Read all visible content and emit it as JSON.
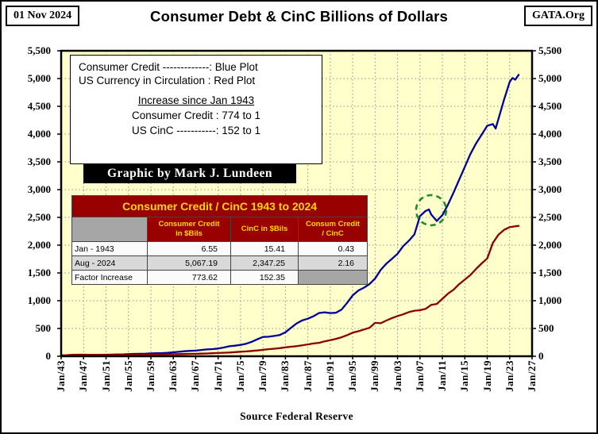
{
  "header": {
    "date_stamp": "01 Nov 2024",
    "title": "Consumer Debt & CinC Billions of Dollars",
    "site": "GATA.Org"
  },
  "legend": {
    "line1": "Consumer Credit -------------: Blue Plot",
    "line2": "US Currency in Circulation : Red Plot",
    "subtitle": "Increase since Jan 1943",
    "line3": "Consumer Credit : 774 to 1",
    "line4": "US CinC -----------: 152 to 1"
  },
  "credit_banner": "Graphic by Mark J. Lundeen",
  "table": {
    "title": "Consumer Credit / CinC 1943 to 2024",
    "columns": [
      "",
      "Consumer Credit in $Bils",
      "CinC in $Bils",
      "Consum Credit / CinC"
    ],
    "rows": [
      {
        "label": "Jan - 1943",
        "values": [
          "6.55",
          "15.41",
          "0.43"
        ]
      },
      {
        "label": "Aug - 2024",
        "values": [
          "5,067.19",
          "2,347.25",
          "2.16"
        ]
      },
      {
        "label": "Factor Increase",
        "values": [
          "773.62",
          "152.35",
          ""
        ]
      }
    ]
  },
  "source": "Source Federal Reserve",
  "colors": {
    "blue_plot": "#00009B",
    "red_plot": "#8B0000",
    "plot_bg": "#FFFFCC",
    "grid": "#909090",
    "table_red": "#990000",
    "table_yellow": "#FFD700",
    "row_gray": "#D9D9D9",
    "cell_gray": "#A6A6A6",
    "annotation_green": "#228B22"
  },
  "chart_data": {
    "type": "line",
    "title": "Consumer Debt & CinC Billions of Dollars",
    "xlabel": "",
    "ylabel": "Billions of Dollars",
    "x_range": [
      1943,
      2027
    ],
    "y_range": [
      0,
      5500
    ],
    "y_tick_step": 500,
    "x_tick_step_years": 4,
    "grid": true,
    "x_tick_labels": [
      "Jan/43",
      "Jan/47",
      "Jan/51",
      "Jan/55",
      "Jan/59",
      "Jan/63",
      "Jan/67",
      "Jan/71",
      "Jan/75",
      "Jan/79",
      "Jan/83",
      "Jan/87",
      "Jan/91",
      "Jan/95",
      "Jan/99",
      "Jan/03",
      "Jan/07",
      "Jan/11",
      "Jan/15",
      "Jan/19",
      "Jan/23",
      "Jan/27"
    ],
    "series": [
      {
        "name": "Consumer Credit",
        "color": "#00009B",
        "points": [
          [
            1943,
            6.55
          ],
          [
            1944,
            5.7
          ],
          [
            1945,
            5.7
          ],
          [
            1946,
            8.4
          ],
          [
            1947,
            11.6
          ],
          [
            1948,
            14.4
          ],
          [
            1949,
            17.4
          ],
          [
            1950,
            21.5
          ],
          [
            1951,
            22.7
          ],
          [
            1952,
            27.5
          ],
          [
            1953,
            31.4
          ],
          [
            1954,
            32.5
          ],
          [
            1955,
            38.8
          ],
          [
            1956,
            42.5
          ],
          [
            1957,
            45.0
          ],
          [
            1958,
            45.1
          ],
          [
            1959,
            51.5
          ],
          [
            1960,
            56.1
          ],
          [
            1961,
            57.7
          ],
          [
            1962,
            63.4
          ],
          [
            1963,
            71.7
          ],
          [
            1964,
            80.3
          ],
          [
            1965,
            89.9
          ],
          [
            1966,
            97.1
          ],
          [
            1967,
            102.1
          ],
          [
            1968,
            113.1
          ],
          [
            1969,
            122.5
          ],
          [
            1970,
            128.1
          ],
          [
            1971,
            138.4
          ],
          [
            1972,
            157.6
          ],
          [
            1973,
            180.5
          ],
          [
            1974,
            190.1
          ],
          [
            1975,
            204.0
          ],
          [
            1976,
            225.7
          ],
          [
            1977,
            260.6
          ],
          [
            1978,
            305.3
          ],
          [
            1979,
            347.5
          ],
          [
            1980,
            351.9
          ],
          [
            1981,
            366.4
          ],
          [
            1982,
            383.2
          ],
          [
            1983,
            431.7
          ],
          [
            1984,
            511.3
          ],
          [
            1985,
            592.1
          ],
          [
            1986,
            646.1
          ],
          [
            1987,
            676.3
          ],
          [
            1988,
            719.3
          ],
          [
            1989,
            779.0
          ],
          [
            1990,
            789.3
          ],
          [
            1991,
            777.5
          ],
          [
            1992,
            782.9
          ],
          [
            1993,
            838.5
          ],
          [
            1994,
            960.6
          ],
          [
            1995,
            1096.0
          ],
          [
            1996,
            1182.7
          ],
          [
            1997,
            1234.4
          ],
          [
            1998,
            1300.5
          ],
          [
            1999,
            1398.0
          ],
          [
            2000,
            1556.3
          ],
          [
            2001,
            1667.2
          ],
          [
            2002,
            1753.7
          ],
          [
            2003,
            1846.1
          ],
          [
            2004,
            1982.0
          ],
          [
            2005,
            2077.1
          ],
          [
            2006,
            2194.1
          ],
          [
            2007,
            2522.2
          ],
          [
            2008,
            2615.0
          ],
          [
            2008.6,
            2643.0
          ],
          [
            2009,
            2555.0
          ],
          [
            2010,
            2435.0
          ],
          [
            2011,
            2540.0
          ],
          [
            2012,
            2730.0
          ],
          [
            2013,
            2950.0
          ],
          [
            2014,
            3180.0
          ],
          [
            2015,
            3410.0
          ],
          [
            2016,
            3640.0
          ],
          [
            2017,
            3830.0
          ],
          [
            2018,
            3990.0
          ],
          [
            2019,
            4150.0
          ],
          [
            2020,
            4180.0
          ],
          [
            2020.5,
            4100.0
          ],
          [
            2021,
            4270.0
          ],
          [
            2022,
            4620.0
          ],
          [
            2023,
            4940.0
          ],
          [
            2023.5,
            5010.0
          ],
          [
            2024,
            4980.0
          ],
          [
            2024.6,
            5067.19
          ]
        ]
      },
      {
        "name": "US Currency in Circulation",
        "color": "#8B0000",
        "points": [
          [
            1943,
            15.41
          ],
          [
            1944,
            20.5
          ],
          [
            1945,
            26.5
          ],
          [
            1946,
            28.5
          ],
          [
            1947,
            28.3
          ],
          [
            1948,
            27.8
          ],
          [
            1949,
            27.5
          ],
          [
            1950,
            27.7
          ],
          [
            1951,
            29.0
          ],
          [
            1952,
            30.4
          ],
          [
            1953,
            30.8
          ],
          [
            1954,
            30.5
          ],
          [
            1955,
            31.2
          ],
          [
            1956,
            31.8
          ],
          [
            1957,
            31.8
          ],
          [
            1958,
            32.2
          ],
          [
            1959,
            32.6
          ],
          [
            1960,
            32.9
          ],
          [
            1961,
            33.4
          ],
          [
            1962,
            34.8
          ],
          [
            1963,
            36.6
          ],
          [
            1964,
            38.4
          ],
          [
            1965,
            40.4
          ],
          [
            1966,
            42.7
          ],
          [
            1967,
            44.8
          ],
          [
            1968,
            47.7
          ],
          [
            1969,
            50.5
          ],
          [
            1970,
            54.4
          ],
          [
            1971,
            58.0
          ],
          [
            1972,
            62.4
          ],
          [
            1973,
            67.8
          ],
          [
            1974,
            73.7
          ],
          [
            1975,
            81.0
          ],
          [
            1976,
            87.4
          ],
          [
            1977,
            95.1
          ],
          [
            1978,
            104.8
          ],
          [
            1979,
            115.0
          ],
          [
            1980,
            127.1
          ],
          [
            1981,
            136.0
          ],
          [
            1982,
            146.2
          ],
          [
            1983,
            160.4
          ],
          [
            1984,
            171.4
          ],
          [
            1985,
            182.0
          ],
          [
            1986,
            197.5
          ],
          [
            1987,
            212.4
          ],
          [
            1988,
            230.2
          ],
          [
            1989,
            241.6
          ],
          [
            1990,
            268.2
          ],
          [
            1991,
            288.6
          ],
          [
            1992,
            313.4
          ],
          [
            1993,
            342.0
          ],
          [
            1994,
            379.5
          ],
          [
            1995,
            424.2
          ],
          [
            1996,
            450.6
          ],
          [
            1997,
            482.1
          ],
          [
            1998,
            512.2
          ],
          [
            1999,
            601.2
          ],
          [
            2000,
            593.7
          ],
          [
            2001,
            643.3
          ],
          [
            2002,
            687.5
          ],
          [
            2003,
            724.2
          ],
          [
            2004,
            754.9
          ],
          [
            2005,
            794.0
          ],
          [
            2006,
            820.0
          ],
          [
            2007,
            829.0
          ],
          [
            2008,
            853.2
          ],
          [
            2009,
            924.7
          ],
          [
            2010,
            942.0
          ],
          [
            2011,
            1033.8
          ],
          [
            2012,
            1127.1
          ],
          [
            2013,
            1198.5
          ],
          [
            2014,
            1299.1
          ],
          [
            2015,
            1380.6
          ],
          [
            2016,
            1463.4
          ],
          [
            2017,
            1571.1
          ],
          [
            2018,
            1671.9
          ],
          [
            2019,
            1759.8
          ],
          [
            2020,
            2040.7
          ],
          [
            2021,
            2186.5
          ],
          [
            2022,
            2276.3
          ],
          [
            2023,
            2325.0
          ],
          [
            2024,
            2340.0
          ],
          [
            2024.6,
            2347.25
          ]
        ]
      }
    ],
    "annotation_circle": {
      "year": 2009.0,
      "value": 2630,
      "r": 19,
      "color": "#228B22"
    }
  }
}
